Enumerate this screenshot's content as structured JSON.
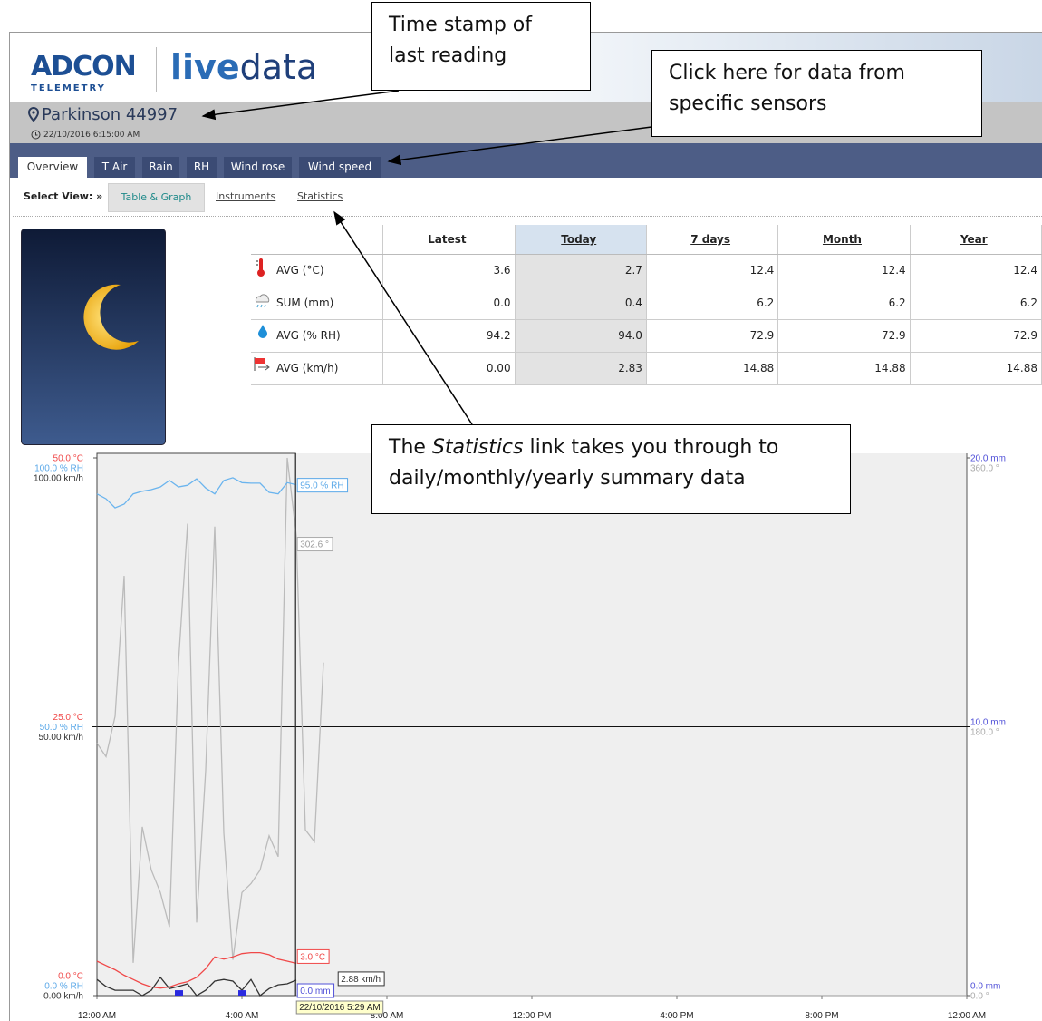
{
  "header": {
    "logo": "ADCON",
    "logo_sub": "TELEMETRY",
    "product": [
      "live",
      "data"
    ],
    "station": "Parkinson 44997",
    "timestamp": "22/10/2016 6:15:00 AM"
  },
  "tabs": [
    "Overview",
    "T Air",
    "Rain",
    "RH",
    "Wind rose",
    "Wind speed"
  ],
  "view": {
    "label": "Select View: »",
    "options": [
      "Table & Graph",
      "Instruments",
      "Statistics"
    ]
  },
  "table": {
    "columns": [
      "Latest",
      "Today",
      "7 days",
      "Month",
      "Year"
    ],
    "rows": [
      {
        "label": "AVG (°C)",
        "values": [
          "3.6",
          "2.7",
          "12.4",
          "12.4",
          "12.4"
        ]
      },
      {
        "label": "SUM (mm)",
        "values": [
          "0.0",
          "0.4",
          "6.2",
          "6.2",
          "6.2"
        ]
      },
      {
        "label": "AVG (% RH)",
        "values": [
          "94.2",
          "94.0",
          "72.9",
          "72.9",
          "72.9"
        ]
      },
      {
        "label": "AVG (km/h)",
        "values": [
          "0.00",
          "2.83",
          "14.88",
          "14.88",
          "14.88"
        ]
      }
    ]
  },
  "graph": {
    "xlim": [
      0,
      24
    ],
    "xticks": [
      {
        "value": 0,
        "label": "12:00 AM"
      },
      {
        "value": 4,
        "label": "4:00 AM"
      },
      {
        "value": 8,
        "label": "8:00 AM"
      },
      {
        "value": 12,
        "label": "12:00 PM"
      },
      {
        "value": 16,
        "label": "4:00 PM"
      },
      {
        "value": 20,
        "label": "8:00 PM"
      },
      {
        "value": 24,
        "label": "12:00 AM"
      }
    ],
    "axes": {
      "temp": {
        "side": "left",
        "color": "#f04848",
        "lim": [
          0,
          50
        ],
        "ticks": [
          {
            "value": 0,
            "label": "0.0 °C"
          },
          {
            "value": 25,
            "label": "25.0 °C"
          },
          {
            "value": 50,
            "label": "50.0 °C"
          }
        ]
      },
      "rh": {
        "side": "left",
        "color": "#5aa8e8",
        "lim": [
          0,
          100
        ],
        "ticks": [
          {
            "value": 0,
            "label": "0.0 % RH"
          },
          {
            "value": 50,
            "label": "50.0 % RH"
          },
          {
            "value": 100,
            "label": "100.0 % RH"
          }
        ]
      },
      "wind": {
        "side": "left",
        "color": "#333333",
        "lim": [
          0,
          100
        ],
        "ticks": [
          {
            "value": 0,
            "label": "0.00 km/h"
          },
          {
            "value": 50,
            "label": "50.00 km/h"
          },
          {
            "value": 100,
            "label": "100.00 km/h"
          }
        ]
      },
      "rain": {
        "side": "right",
        "color": "#5050d8",
        "lim": [
          0,
          20
        ],
        "ticks": [
          {
            "value": 0,
            "label": "0.0 mm"
          },
          {
            "value": 10,
            "label": "10.0 mm"
          },
          {
            "value": 20,
            "label": "20.0 mm"
          }
        ]
      },
      "dir": {
        "side": "right",
        "color": "#aaaaaa",
        "lim": [
          0,
          360
        ],
        "ticks": [
          {
            "value": 0,
            "label": "0.0 °"
          },
          {
            "value": 180,
            "label": "180.0 °"
          },
          {
            "value": 360,
            "label": "360.0 °"
          }
        ]
      }
    },
    "series": [
      {
        "axis": "dir",
        "color": "#bbbbbb",
        "x": [
          0,
          0.25,
          0.5,
          0.75,
          1,
          1.25,
          1.5,
          1.75,
          2,
          2.25,
          2.5,
          2.75,
          3,
          3.25,
          3.5,
          3.75,
          4,
          4.25,
          4.5,
          4.75,
          5,
          5.25,
          5.5,
          5.75,
          6,
          6.25
        ],
        "values": [
          169,
          160,
          187,
          281,
          22,
          113,
          84,
          69,
          46,
          223,
          316,
          49,
          151,
          314,
          109,
          24,
          69,
          75,
          84,
          107,
          93,
          360,
          308,
          111,
          103,
          223
        ]
      },
      {
        "axis": "rh",
        "color": "#6ab4ee",
        "x": [
          0,
          0.25,
          0.5,
          0.75,
          1,
          1.25,
          1.5,
          1.75,
          2,
          2.25,
          2.5,
          2.75,
          3,
          3.25,
          3.5,
          3.75,
          4,
          4.25,
          4.5,
          4.75,
          5,
          5.25,
          5.5
        ],
        "values": [
          93.3,
          92.4,
          90.7,
          91.4,
          93.3,
          93.8,
          94.1,
          94.6,
          95.8,
          94.6,
          94.9,
          96.1,
          94.4,
          93.3,
          95.8,
          96.3,
          95.4,
          95.3,
          95.3,
          93.6,
          93.3,
          95.4,
          95.0
        ]
      },
      {
        "axis": "temp",
        "color": "#f04848",
        "x": [
          0,
          0.25,
          0.5,
          0.75,
          1,
          1.25,
          1.5,
          1.75,
          2,
          2.25,
          2.5,
          2.75,
          3,
          3.25,
          3.5,
          3.75,
          4,
          4.25,
          4.5,
          4.75,
          5,
          5.25,
          5.5
        ],
        "values": [
          3.2,
          2.8,
          2.4,
          1.9,
          1.5,
          1.1,
          0.8,
          0.7,
          0.8,
          1.1,
          1.3,
          1.7,
          2.5,
          3.6,
          3.4,
          3.6,
          3.9,
          4.0,
          4.0,
          3.8,
          3.4,
          3.2,
          3.0
        ]
      },
      {
        "axis": "wind",
        "color": "#333333",
        "x": [
          0,
          0.25,
          0.5,
          0.75,
          1,
          1.25,
          1.5,
          1.75,
          2,
          2.25,
          2.5,
          2.75,
          3,
          3.25,
          3.5,
          3.75,
          4,
          4.25,
          4.5,
          4.75,
          5,
          5.25,
          5.5
        ],
        "values": [
          3.0,
          1.7,
          1.0,
          1.0,
          1.0,
          0,
          1.0,
          3.4,
          1.3,
          1.7,
          2.2,
          0,
          1.0,
          2.7,
          3.0,
          2.7,
          1.0,
          3.0,
          0,
          1.3,
          2.0,
          2.2,
          2.88
        ]
      }
    ],
    "bars": {
      "axis": "rain",
      "color": "#2a2ae0",
      "x": [
        2.25,
        4.0
      ],
      "values": [
        0.2,
        0.2
      ]
    },
    "readouts": [
      {
        "axis": "rh",
        "value": 95.0,
        "label": "95.0 % RH"
      },
      {
        "axis": "dir",
        "value": 302.6,
        "label": "302.6 °"
      },
      {
        "axis": "temp",
        "value": 3.0,
        "label": "3.0 °C"
      },
      {
        "axis": "wind",
        "value": 2.88,
        "label": "2.88 km/h"
      },
      {
        "axis": "rain",
        "value": 0.0,
        "label": "0.0 mm"
      }
    ],
    "cursor": {
      "value": 5.48,
      "label": "22/10/2016 5:29 AM"
    }
  },
  "callouts": [
    {
      "lines": [
        "Time stamp of",
        "last reading"
      ]
    },
    {
      "lines": [
        "Click here for data from",
        "specific sensors"
      ]
    },
    {
      "before": "The ",
      "em": "Statistics",
      "after": " link takes you through to",
      "line2": "daily/monthly/yearly summary data"
    }
  ]
}
